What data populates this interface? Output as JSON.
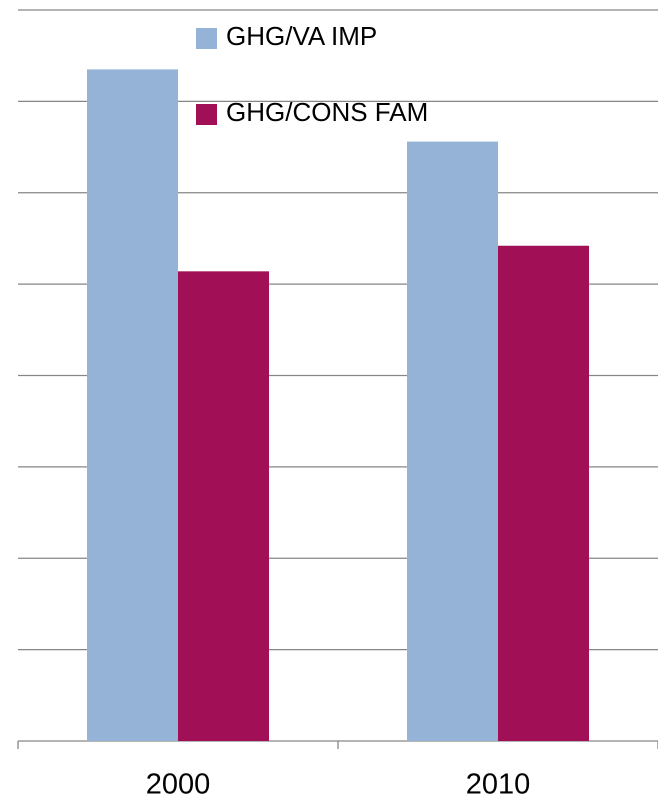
{
  "chart_data": {
    "type": "bar",
    "categories": [
      "2000",
      "2010"
    ],
    "series": [
      {
        "name": "GHG/VA IMP",
        "color": "#95b3d7",
        "values": [
          7.35,
          6.56
        ]
      },
      {
        "name": "GHG/CONS FAM",
        "color": "#a10f56",
        "values": [
          5.14,
          5.42
        ]
      }
    ],
    "ylim": [
      0,
      8
    ],
    "yticks": [
      0,
      1,
      2,
      3,
      4,
      5,
      6,
      7,
      8
    ],
    "grid": true
  }
}
